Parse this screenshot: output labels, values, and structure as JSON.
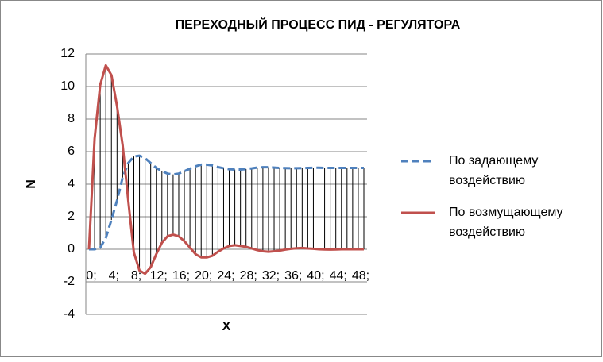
{
  "chart_data": {
    "type": "line",
    "title": "ПЕРЕХОДНЫЙ ПРОЦЕСС ПИД - РЕГУЛЯТОРА",
    "x_label": "X",
    "y_label": "N",
    "categories": [
      "0;",
      null,
      null,
      null,
      "4;",
      null,
      null,
      null,
      "8;",
      null,
      null,
      null,
      "12;",
      null,
      null,
      null,
      "16;",
      null,
      null,
      null,
      "20;",
      null,
      null,
      null,
      "24;",
      null,
      null,
      null,
      "28;",
      null,
      null,
      null,
      "32;",
      null,
      null,
      null,
      "36;",
      null,
      null,
      null,
      "40;",
      null,
      null,
      null,
      "44;",
      null,
      null,
      null,
      "48;",
      null
    ],
    "series": [
      {
        "name": "По задающему воздействию",
        "color": "#4f81bd",
        "dash": true,
        "values": [
          0,
          0,
          0.1,
          0.7,
          1.8,
          3.0,
          4.4,
          5.3,
          5.7,
          5.75,
          5.6,
          5.3,
          5.0,
          4.8,
          4.65,
          4.6,
          4.65,
          4.8,
          4.95,
          5.1,
          5.2,
          5.2,
          5.15,
          5.05,
          4.98,
          4.92,
          4.9,
          4.9,
          4.93,
          4.97,
          5.02,
          5.04,
          5.04,
          5.02,
          5.0,
          4.99,
          4.98,
          4.98,
          4.99,
          5.0,
          5.01,
          5.01,
          5.0,
          5.0,
          5.0,
          5.0,
          5.0,
          5.0,
          5.0,
          5.0
        ]
      },
      {
        "name": "По возмущающему воздействию",
        "color": "#c0504d",
        "dash": false,
        "values": [
          0,
          6.8,
          10.1,
          11.3,
          10.7,
          8.8,
          6.4,
          3.0,
          -0.2,
          -1.3,
          -1.5,
          -1.1,
          -0.3,
          0.4,
          0.8,
          0.9,
          0.8,
          0.5,
          0.1,
          -0.3,
          -0.5,
          -0.5,
          -0.4,
          -0.15,
          0.05,
          0.2,
          0.25,
          0.2,
          0.15,
          0.05,
          -0.05,
          -0.12,
          -0.15,
          -0.12,
          -0.08,
          -0.02,
          0.03,
          0.06,
          0.08,
          0.05,
          0.03,
          0.0,
          -0.01,
          -0.02,
          -0.01,
          0,
          0,
          0,
          0,
          0
        ]
      }
    ],
    "ylim": [
      -4,
      12
    ],
    "yticks": [
      -4,
      -2,
      0,
      2,
      4,
      6,
      8,
      10,
      12
    ],
    "grid": true,
    "drop_lines": true,
    "legend": "right"
  }
}
